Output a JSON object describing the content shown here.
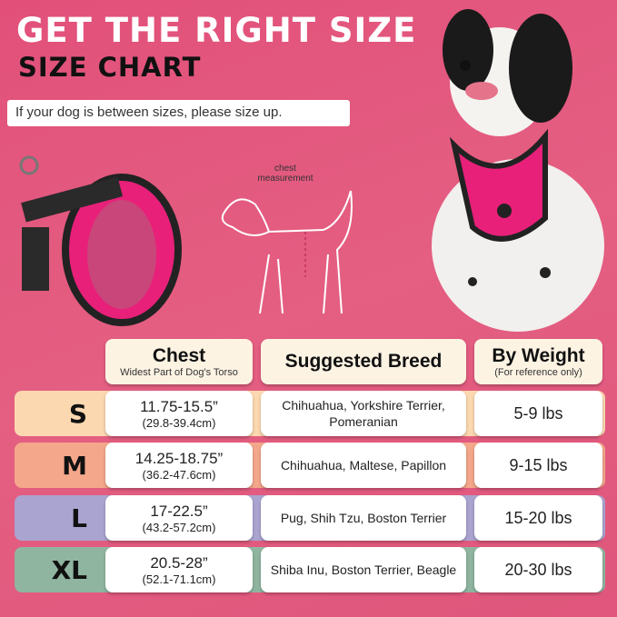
{
  "title": "GET THE RIGHT SIZE",
  "subtitle": "SIZE CHART",
  "note": "If your dog is between sizes, please size up.",
  "illustration_label": "chest measurement",
  "headers": {
    "chest": "Chest",
    "chest_sub": "Widest Part of Dog's Torso",
    "breed": "Suggested Breed",
    "weight": "By Weight",
    "weight_sub": "(For reference only)"
  },
  "rows": [
    {
      "size": "S",
      "chest_in": "11.75-15.5”",
      "chest_cm": "(29.8-39.4cm)",
      "breed": "Chihuahua, Yorkshire Terrier, Pomeranian",
      "weight": "5-9 lbs",
      "color": "#fcd8b0"
    },
    {
      "size": "M",
      "chest_in": "14.25-18.75”",
      "chest_cm": "(36.2-47.6cm)",
      "breed": "Chihuahua, Maltese, Papillon",
      "weight": "9-15 lbs",
      "color": "#f4a78a"
    },
    {
      "size": "L",
      "chest_in": "17-22.5”",
      "chest_cm": "(43.2-57.2cm)",
      "breed": "Pug, Shih Tzu, Boston Terrier",
      "weight": "15-20 lbs",
      "color": "#aaa4d0"
    },
    {
      "size": "XL",
      "chest_in": "20.5-28”",
      "chest_cm": "(52.1-71.1cm)",
      "breed": "Shiba Inu, Boston Terrier, Beagle",
      "weight": "20-30 lbs",
      "color": "#8fb5a0"
    }
  ],
  "colors": {
    "background": "#e2507a",
    "header_card": "#fdf3e3",
    "harness": "#e8207a"
  }
}
